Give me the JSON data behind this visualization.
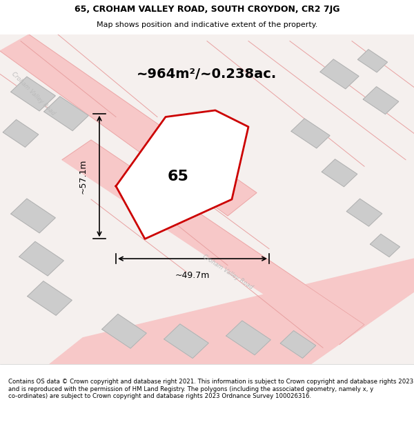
{
  "title_line1": "65, CROHAM VALLEY ROAD, SOUTH CROYDON, CR2 7JG",
  "title_line2": "Map shows position and indicative extent of the property.",
  "area_text": "~964m²/~0.238ac.",
  "property_label": "65",
  "dim_vertical": "~57.1m",
  "dim_horizontal": "~49.7m",
  "footer_text": "Contains OS data © Crown copyright and database right 2021. This information is subject to Crown copyright and database rights 2023 and is reproduced with the permission of HM Land Registry. The polygons (including the associated geometry, namely x, y co-ordinates) are subject to Crown copyright and database rights 2023 Ordnance Survey 100026316.",
  "bg_color": "#f5f0ee",
  "map_bg": "#f5f0ee",
  "road_color_light": "#f7c8c8",
  "road_color_dark": "#e8a0a0",
  "building_color": "#cccccc",
  "property_fill": "white",
  "property_edge": "#cc0000",
  "road_label_color": "#bbbbbb",
  "footer_bg": "white",
  "title_bg": "white",
  "map_border": "#cccccc"
}
